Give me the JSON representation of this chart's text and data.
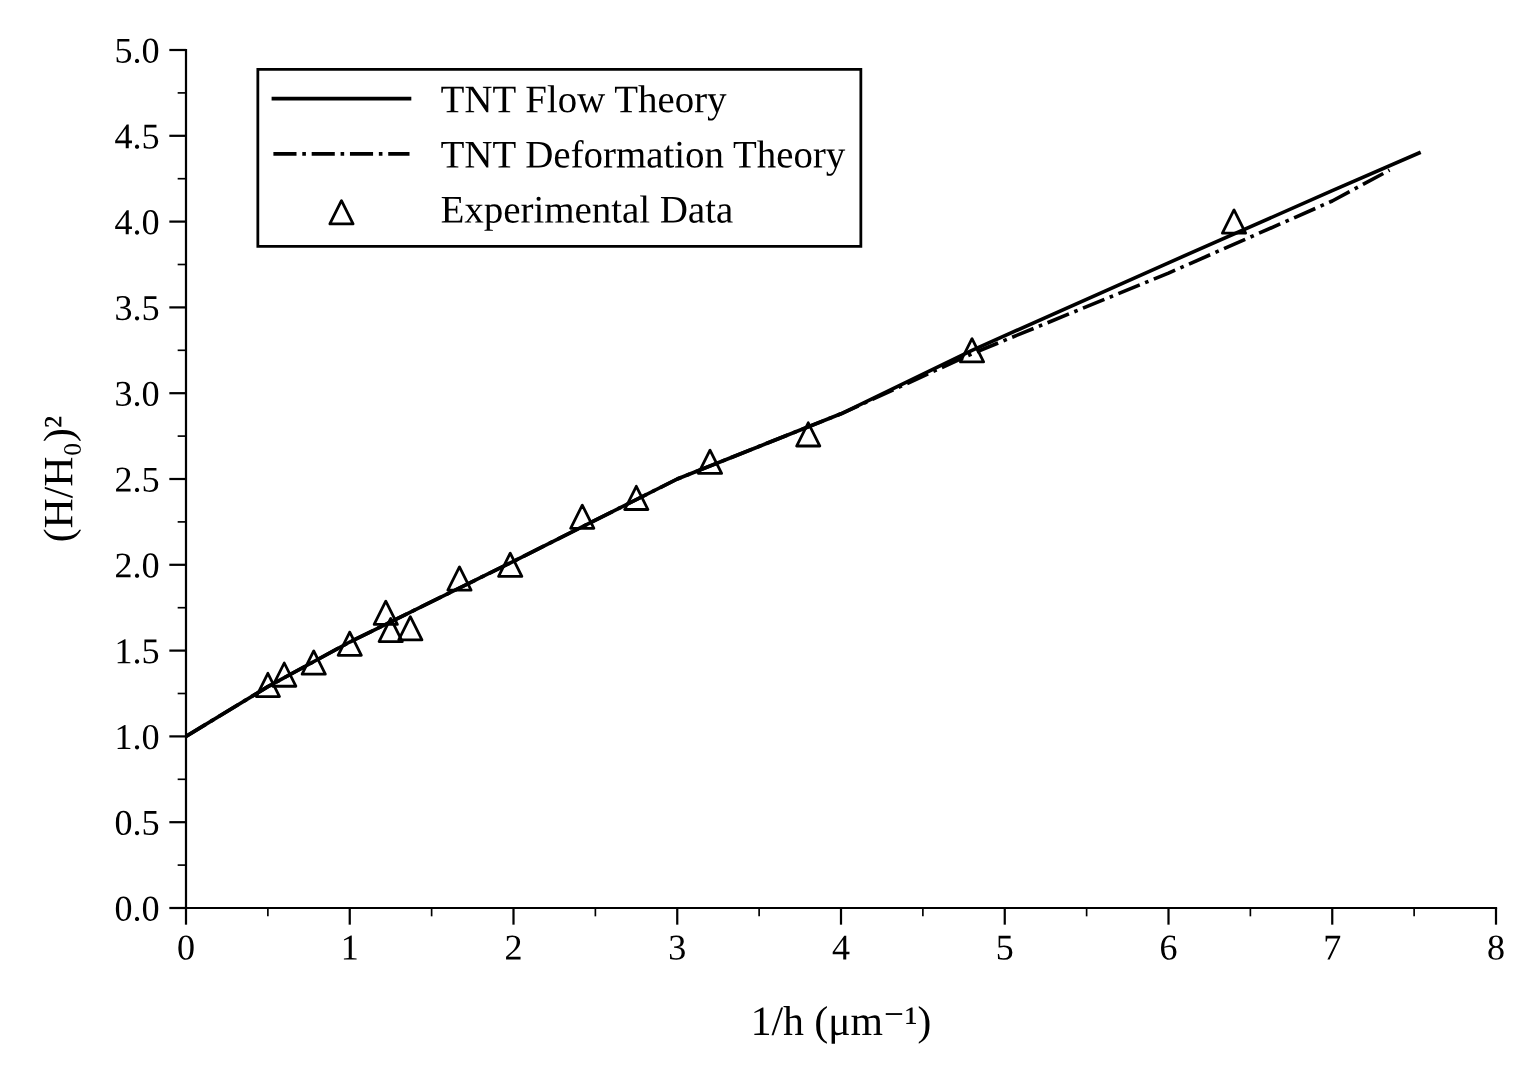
{
  "chart_data": {
    "type": "line",
    "xlabel": "1/h (μm⁻¹)",
    "ylabel": "(H/H₀)²",
    "xlim": [
      0,
      8
    ],
    "ylim": [
      0,
      5
    ],
    "xticks": [
      0,
      1,
      2,
      3,
      4,
      5,
      6,
      7,
      8
    ],
    "yticks": [
      {
        "value": 0,
        "label": "0.0"
      },
      {
        "value": 0.5,
        "label": "0.5"
      },
      {
        "value": 1,
        "label": "1.0"
      },
      {
        "value": 1.5,
        "label": "1.5"
      },
      {
        "value": 2,
        "label": "2.0"
      },
      {
        "value": 2.5,
        "label": "2.5"
      },
      {
        "value": 3,
        "label": "3.0"
      },
      {
        "value": 3.5,
        "label": "3.5"
      },
      {
        "value": 4,
        "label": "4.0"
      },
      {
        "value": 4.5,
        "label": "4.5"
      },
      {
        "value": 5,
        "label": "5.0"
      }
    ],
    "legend": "top left",
    "grid": false,
    "series": [
      {
        "name": "TNT Flow Theory",
        "color": "#000000",
        "line_style": "solid",
        "marker": "none",
        "x": [
          0,
          0.5,
          1,
          2,
          3,
          4,
          4.8,
          6,
          7,
          7.53
        ],
        "values": [
          1,
          1.29,
          1.55,
          2.02,
          2.5,
          2.88,
          3.25,
          3.76,
          4.18,
          4.4
        ]
      },
      {
        "name": "TNT Deformation Theory",
        "color": "#000000",
        "line_style": "dashdot",
        "marker": "none",
        "x": [
          0,
          0.5,
          1,
          2,
          3,
          4,
          4.8,
          6,
          7,
          7.35
        ],
        "values": [
          1,
          1.29,
          1.55,
          2.02,
          2.5,
          2.88,
          3.23,
          3.7,
          4.12,
          4.3
        ]
      },
      {
        "name": "Experimental Data",
        "type": "scatter",
        "color": "#000000",
        "marker": "triangle",
        "x": [
          0.5,
          0.6,
          0.78,
          1.0,
          1.22,
          1.25,
          1.37,
          1.67,
          1.98,
          2.42,
          2.75,
          3.2,
          3.8,
          4.8,
          6.4
        ],
        "values": [
          1.3,
          1.36,
          1.43,
          1.54,
          1.72,
          1.62,
          1.63,
          1.92,
          2.0,
          2.28,
          2.39,
          2.6,
          2.76,
          3.25,
          4.0
        ]
      }
    ]
  }
}
